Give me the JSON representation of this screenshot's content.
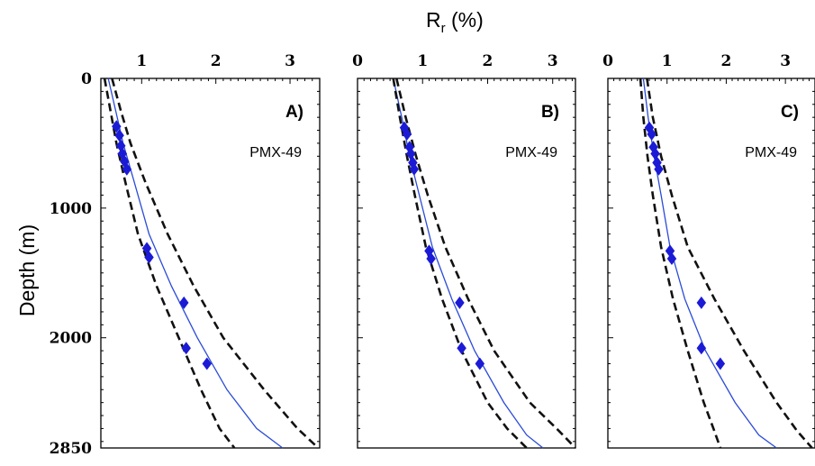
{
  "figure": {
    "xaxis_title_main": "R",
    "xaxis_title_sub": "r",
    "xaxis_title_rest": " (%)",
    "yaxis_title": "Depth (m)"
  },
  "chart_data": [
    {
      "type": "line",
      "panel_label": "A)",
      "well_label": "PMX-49",
      "x_ticks": [
        "1",
        "2",
        "3"
      ],
      "y_ticks": [
        "0",
        "1000",
        "2000",
        "2850"
      ],
      "xlim": [
        0.45,
        3.4
      ],
      "ylim": [
        0,
        2850
      ],
      "y_inverted": true,
      "grid": false,
      "series": [
        {
          "role": "model",
          "color": "#2a4bd7",
          "style": "solid",
          "points": [
            [
              0.55,
              0
            ],
            [
              0.65,
              250
            ],
            [
              0.75,
              500
            ],
            [
              0.9,
              800
            ],
            [
              1.1,
              1200
            ],
            [
              1.4,
              1600
            ],
            [
              1.75,
              2000
            ],
            [
              2.15,
              2400
            ],
            [
              2.55,
              2700
            ],
            [
              2.9,
              2850
            ]
          ]
        },
        {
          "role": "upper-bound",
          "color": "#111111",
          "style": "dashed",
          "points": [
            [
              0.6,
              0
            ],
            [
              0.72,
              250
            ],
            [
              0.85,
              500
            ],
            [
              1.05,
              800
            ],
            [
              1.35,
              1200
            ],
            [
              1.7,
              1600
            ],
            [
              2.1,
              2000
            ],
            [
              2.65,
              2400
            ],
            [
              3.1,
              2700
            ],
            [
              3.38,
              2850
            ]
          ]
        },
        {
          "role": "lower-bound",
          "color": "#111111",
          "style": "dashed",
          "points": [
            [
              0.5,
              0
            ],
            [
              0.58,
              250
            ],
            [
              0.66,
              500
            ],
            [
              0.78,
              800
            ],
            [
              0.95,
              1200
            ],
            [
              1.2,
              1600
            ],
            [
              1.5,
              2000
            ],
            [
              1.8,
              2400
            ],
            [
              2.05,
              2700
            ],
            [
              2.25,
              2850
            ]
          ]
        },
        {
          "role": "measured",
          "color": "#1b1bd6",
          "style": "markers",
          "points": [
            [
              0.66,
              370
            ],
            [
              0.7,
              440
            ],
            [
              0.72,
              520
            ],
            [
              0.74,
              580
            ],
            [
              0.77,
              640
            ],
            [
              0.8,
              700
            ],
            [
              1.07,
              1310
            ],
            [
              1.1,
              1380
            ],
            [
              1.57,
              1730
            ],
            [
              1.6,
              2080
            ],
            [
              1.88,
              2200
            ]
          ]
        }
      ]
    },
    {
      "type": "line",
      "panel_label": "B)",
      "well_label": "PMX-49",
      "x_ticks": [
        "0",
        "1",
        "2",
        "3"
      ],
      "y_ticks": [],
      "xlim": [
        0,
        3.35
      ],
      "ylim": [
        0,
        2850
      ],
      "y_inverted": true,
      "grid": false,
      "series": [
        {
          "role": "model",
          "color": "#2a4bd7",
          "style": "solid",
          "points": [
            [
              0.55,
              0
            ],
            [
              0.68,
              300
            ],
            [
              0.8,
              600
            ],
            [
              0.95,
              900
            ],
            [
              1.15,
              1300
            ],
            [
              1.45,
              1700
            ],
            [
              1.8,
              2100
            ],
            [
              2.25,
              2500
            ],
            [
              2.6,
              2750
            ],
            [
              2.85,
              2850
            ]
          ]
        },
        {
          "role": "upper-bound",
          "color": "#111111",
          "style": "dashed",
          "points": [
            [
              0.6,
              0
            ],
            [
              0.74,
              300
            ],
            [
              0.9,
              600
            ],
            [
              1.08,
              900
            ],
            [
              1.35,
              1300
            ],
            [
              1.7,
              1700
            ],
            [
              2.1,
              2100
            ],
            [
              2.65,
              2500
            ],
            [
              3.1,
              2720
            ],
            [
              3.35,
              2850
            ]
          ]
        },
        {
          "role": "lower-bound",
          "color": "#111111",
          "style": "dashed",
          "points": [
            [
              0.55,
              0
            ],
            [
              0.65,
              300
            ],
            [
              0.76,
              600
            ],
            [
              0.88,
              900
            ],
            [
              1.05,
              1300
            ],
            [
              1.3,
              1700
            ],
            [
              1.6,
              2100
            ],
            [
              2.0,
              2500
            ],
            [
              2.3,
              2700
            ],
            [
              2.6,
              2850
            ]
          ]
        },
        {
          "role": "measured",
          "color": "#1b1bd6",
          "style": "markers",
          "points": [
            [
              0.72,
              380
            ],
            [
              0.76,
              430
            ],
            [
              0.8,
              530
            ],
            [
              0.82,
              580
            ],
            [
              0.85,
              650
            ],
            [
              0.87,
              700
            ],
            [
              1.1,
              1330
            ],
            [
              1.13,
              1390
            ],
            [
              1.57,
              1730
            ],
            [
              1.6,
              2080
            ],
            [
              1.88,
              2200
            ]
          ]
        }
      ]
    },
    {
      "type": "line",
      "panel_label": "C)",
      "well_label": "PMX-49",
      "x_ticks": [
        "0",
        "1",
        "2",
        "3"
      ],
      "y_ticks": [],
      "xlim": [
        0,
        3.5
      ],
      "ylim": [
        0,
        2850
      ],
      "y_inverted": true,
      "grid": false,
      "series": [
        {
          "role": "model",
          "color": "#2a4bd7",
          "style": "solid",
          "points": [
            [
              0.6,
              0
            ],
            [
              0.68,
              300
            ],
            [
              0.78,
              600
            ],
            [
              0.9,
              900
            ],
            [
              1.05,
              1300
            ],
            [
              1.3,
              1700
            ],
            [
              1.65,
              2100
            ],
            [
              2.15,
              2500
            ],
            [
              2.55,
              2750
            ],
            [
              2.85,
              2850
            ]
          ]
        },
        {
          "role": "upper-bound",
          "color": "#111111",
          "style": "dashed",
          "points": [
            [
              0.66,
              0
            ],
            [
              0.76,
              300
            ],
            [
              0.9,
              600
            ],
            [
              1.08,
              900
            ],
            [
              1.35,
              1300
            ],
            [
              1.8,
              1700
            ],
            [
              2.3,
              2100
            ],
            [
              2.85,
              2500
            ],
            [
              3.2,
              2720
            ],
            [
              3.45,
              2850
            ]
          ]
        },
        {
          "role": "lower-bound",
          "color": "#111111",
          "style": "dashed",
          "points": [
            [
              0.55,
              0
            ],
            [
              0.6,
              300
            ],
            [
              0.67,
              600
            ],
            [
              0.76,
              900
            ],
            [
              0.9,
              1300
            ],
            [
              1.1,
              1700
            ],
            [
              1.35,
              2100
            ],
            [
              1.62,
              2500
            ],
            [
              1.8,
              2720
            ],
            [
              1.9,
              2850
            ]
          ]
        },
        {
          "role": "measured",
          "color": "#1b1bd6",
          "style": "markers",
          "points": [
            [
              0.7,
              380
            ],
            [
              0.74,
              430
            ],
            [
              0.77,
              530
            ],
            [
              0.8,
              580
            ],
            [
              0.83,
              650
            ],
            [
              0.86,
              700
            ],
            [
              1.05,
              1330
            ],
            [
              1.08,
              1390
            ],
            [
              1.58,
              1730
            ],
            [
              1.58,
              2080
            ],
            [
              1.9,
              2200
            ]
          ]
        }
      ]
    }
  ]
}
